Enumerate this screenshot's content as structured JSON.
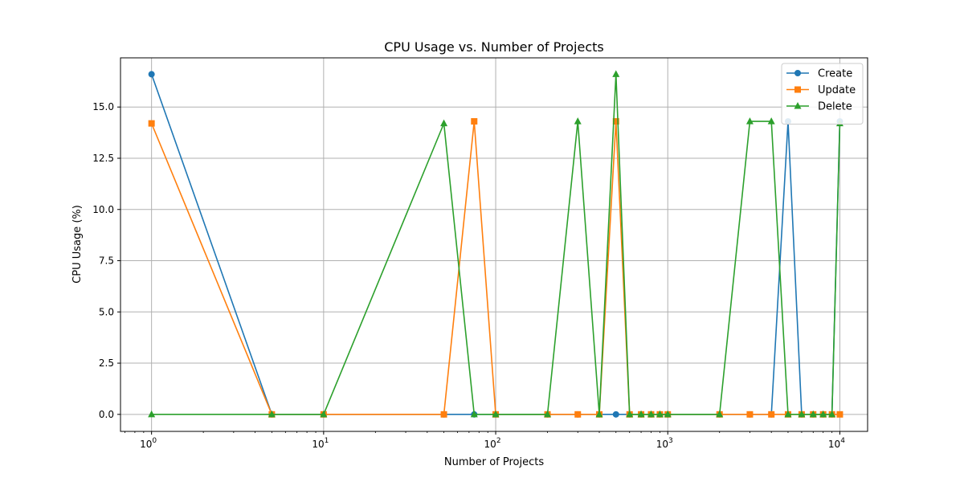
{
  "chart_data": {
    "type": "line",
    "title": "CPU Usage vs. Number of Projects",
    "xlabel": "Number of Projects",
    "ylabel": "CPU Usage (%)",
    "x_scale": "log",
    "xlim": [
      0.66,
      14500
    ],
    "ylim": [
      -0.83,
      17.4
    ],
    "grid": true,
    "legend_position": "top-right",
    "x_ticks": [
      {
        "value": 1,
        "base": "10",
        "exp": "0"
      },
      {
        "value": 10,
        "base": "10",
        "exp": "1"
      },
      {
        "value": 100,
        "base": "10",
        "exp": "2"
      },
      {
        "value": 1000,
        "base": "10",
        "exp": "3"
      },
      {
        "value": 10000,
        "base": "10",
        "exp": "4"
      }
    ],
    "y_ticks": [
      {
        "value": 0,
        "label": "0.0"
      },
      {
        "value": 2.5,
        "label": "2.5"
      },
      {
        "value": 5,
        "label": "5.0"
      },
      {
        "value": 7.5,
        "label": "7.5"
      },
      {
        "value": 10,
        "label": "10.0"
      },
      {
        "value": 12.5,
        "label": "12.5"
      },
      {
        "value": 15,
        "label": "15.0"
      }
    ],
    "x": [
      1,
      5,
      10,
      50,
      75,
      100,
      200,
      300,
      400,
      500,
      600,
      700,
      800,
      900,
      1000,
      2000,
      3000,
      4000,
      5000,
      6000,
      7000,
      8000,
      9000,
      10000
    ],
    "series": [
      {
        "name": "Create",
        "color": "#1f77b4",
        "marker": "circle",
        "values": [
          16.6,
          0,
          0,
          0,
          0,
          0,
          0,
          0,
          0,
          0,
          0,
          0,
          0,
          0,
          0,
          0,
          0,
          0,
          14.3,
          0,
          0,
          0,
          0,
          14.3
        ]
      },
      {
        "name": "Update",
        "color": "#ff7f0e",
        "marker": "square",
        "values": [
          14.2,
          0,
          0,
          0,
          14.3,
          0,
          0,
          0,
          0,
          14.3,
          0,
          0,
          0,
          0,
          0,
          0,
          0,
          0,
          0,
          0,
          0,
          0,
          0,
          0
        ]
      },
      {
        "name": "Delete",
        "color": "#2ca02c",
        "marker": "triangle",
        "values": [
          0,
          0,
          0,
          14.2,
          0,
          0,
          0,
          14.3,
          0,
          16.6,
          0,
          0,
          0,
          0,
          0,
          0,
          14.3,
          14.3,
          0,
          0,
          0,
          0,
          0,
          14.2
        ]
      }
    ]
  }
}
